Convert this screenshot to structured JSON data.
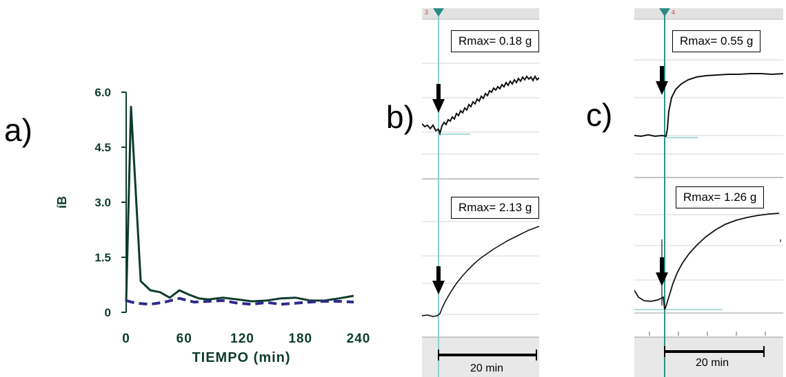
{
  "panel_a": {
    "letter": "a)",
    "chart_data": {
      "type": "line",
      "title": "",
      "xlabel": "TIEMPO (min)",
      "ylabel": "íB",
      "xlim": [
        0,
        240
      ],
      "ylim": [
        0,
        6.0
      ],
      "x_ticks": [
        "0",
        "60",
        "120",
        "180",
        "240"
      ],
      "y_ticks": [
        "0",
        "1.5",
        "3.0",
        "4.5",
        "6.0"
      ],
      "grid": false,
      "series": [
        {
          "style": "solid",
          "color": "#0d3b2e",
          "x": [
            0,
            5,
            15,
            25,
            35,
            45,
            55,
            65,
            75,
            85,
            100,
            115,
            130,
            145,
            160,
            175,
            190,
            205,
            220,
            235
          ],
          "y": [
            0.3,
            5.6,
            0.85,
            0.6,
            0.55,
            0.4,
            0.6,
            0.48,
            0.38,
            0.35,
            0.4,
            0.35,
            0.3,
            0.32,
            0.38,
            0.4,
            0.32,
            0.32,
            0.38,
            0.45
          ]
        },
        {
          "style": "dashed",
          "color": "#2e2a8c",
          "x": [
            0,
            10,
            25,
            40,
            55,
            70,
            85,
            100,
            115,
            130,
            145,
            160,
            175,
            190,
            205,
            220,
            235
          ],
          "y": [
            0.32,
            0.25,
            0.22,
            0.28,
            0.38,
            0.28,
            0.3,
            0.32,
            0.25,
            0.22,
            0.27,
            0.22,
            0.25,
            0.28,
            0.3,
            0.3,
            0.28
          ]
        }
      ]
    }
  },
  "panel_b": {
    "letter": "b)",
    "top_label": "Rmax= 0.18 g",
    "bottom_label": "Rmax= 2.13 g",
    "marker_number": "3",
    "scale_label": "20 min"
  },
  "panel_c": {
    "letter": "c)",
    "top_label": "Rmax= 0.55 g",
    "bottom_label": "Rmax= 1.26 g",
    "marker_number": "4",
    "scale_label": "20 min"
  },
  "colors": {
    "solid_line": "#0d3b2e",
    "dashed_line": "#2e2a8c",
    "axis": "#0d3b2e",
    "cursor": "#8fcfcf",
    "marker": "#2a8a85",
    "gray_band": "#e6e6e6"
  }
}
